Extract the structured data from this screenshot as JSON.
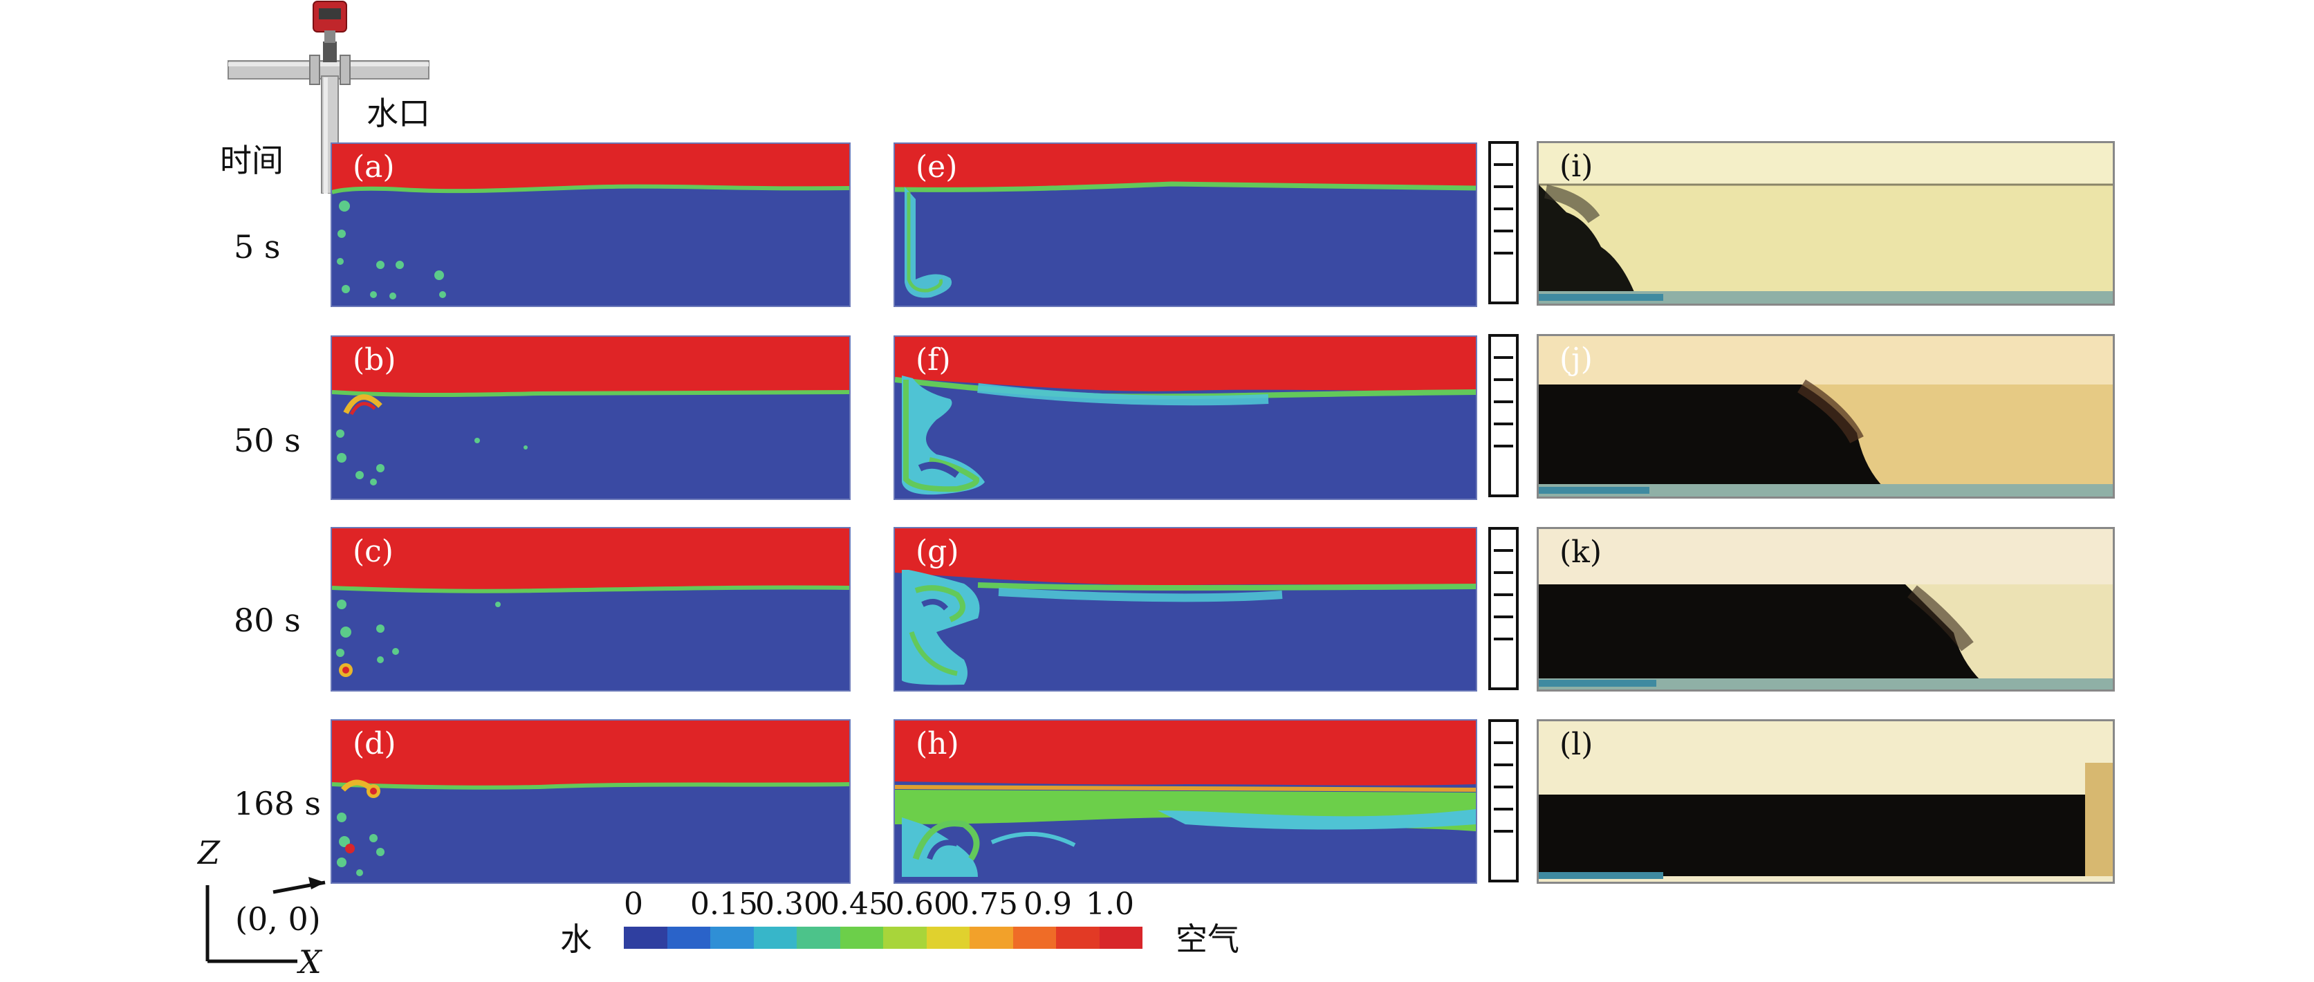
{
  "labels": {
    "inlet": "水口",
    "time": "时间",
    "origin": "(0, 0)",
    "axis_x": "X",
    "axis_z": "Z"
  },
  "times": [
    "5 s",
    "50 s",
    "80 s",
    "168 s"
  ],
  "panels": {
    "simA": [
      "(a)",
      "(b)",
      "(c)",
      "(d)"
    ],
    "simB": [
      "(e)",
      "(f)",
      "(g)",
      "(h)"
    ],
    "photo": [
      "(i)",
      "(j)",
      "(k)",
      "(l)"
    ]
  },
  "colorbar": {
    "left_label": "水",
    "right_label": "空气",
    "ticks": [
      "0",
      "0.15",
      "0.30",
      "0.45",
      "0.60",
      "0.75",
      "0.9",
      "1.0"
    ],
    "colors": [
      "#2f3fa0",
      "#2a63c9",
      "#2f8fd6",
      "#37b6c9",
      "#4cc38a",
      "#6ccf4a",
      "#a8d53a",
      "#e0d12e",
      "#f2a12a",
      "#ef6c27",
      "#e23a25",
      "#d8262a"
    ]
  },
  "colors": {
    "water": "#3a4aa3",
    "air": "#df2426",
    "interface_green": "#63c95a",
    "interface_cyan": "#4fc3d4"
  }
}
